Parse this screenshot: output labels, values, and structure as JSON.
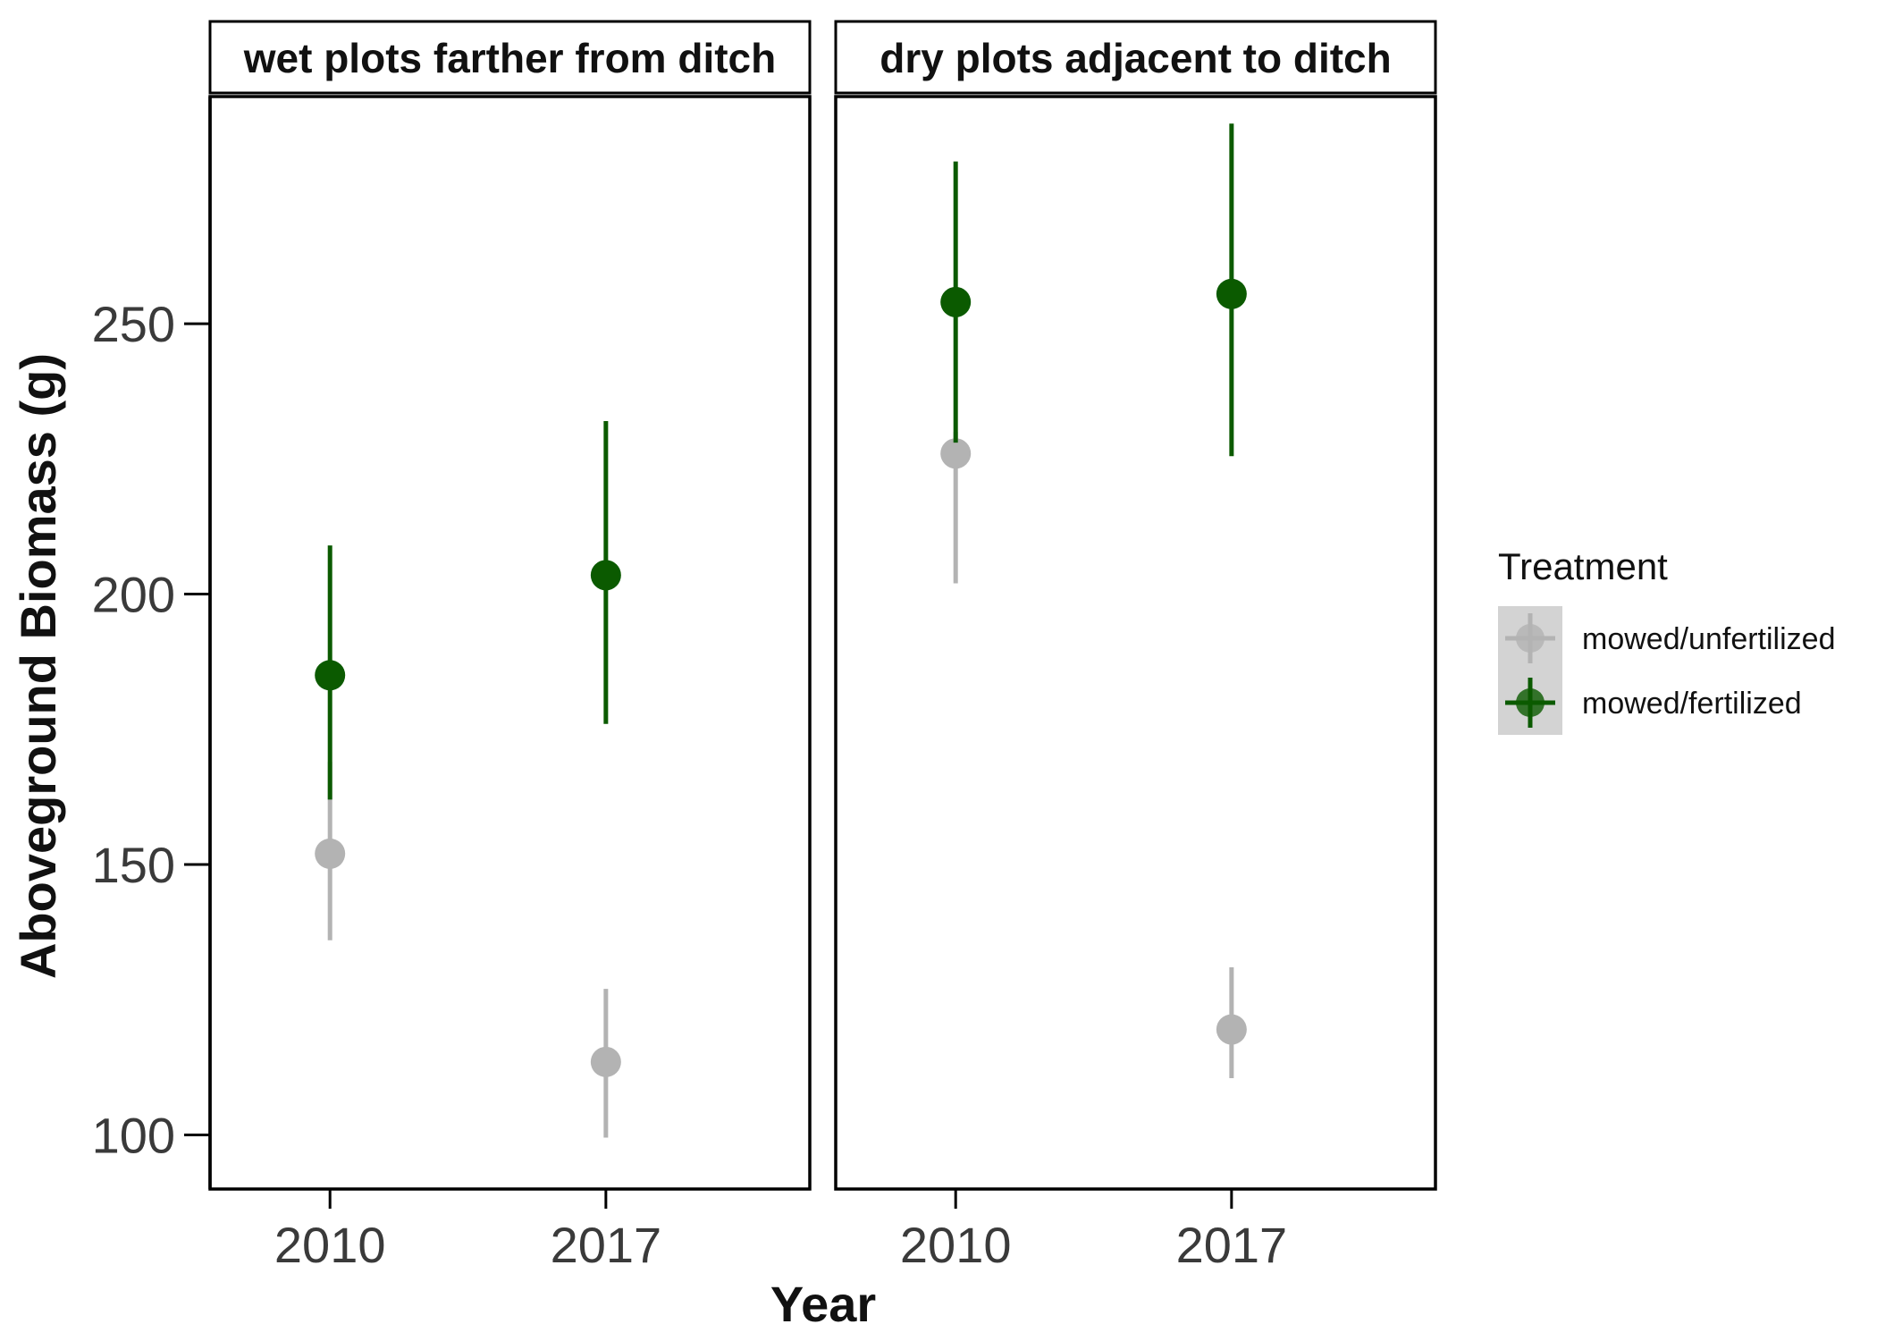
{
  "chart_data": {
    "type": "scatter",
    "subtype": "point-with-errorbars",
    "xlabel": "Year",
    "ylabel": "Aboveground Biomass (g)",
    "categories": [
      "2010",
      "2017"
    ],
    "ylim": [
      90,
      292
    ],
    "yticks": [
      100,
      150,
      200,
      250
    ],
    "grid": false,
    "legend": {
      "title": "Treatment",
      "position": "right"
    },
    "series": [
      {
        "name": "mowed/unfertilized",
        "color": "#b3b3b3"
      },
      {
        "name": "mowed/fertilized",
        "color": "#0b5a00"
      }
    ],
    "facets": [
      {
        "title": "wet plots farther from ditch",
        "points": [
          {
            "series": 0,
            "x": "2010",
            "y": 152,
            "ymin": 136,
            "ymax": 169
          },
          {
            "series": 0,
            "x": "2017",
            "y": 113.5,
            "ymin": 99.5,
            "ymax": 127
          },
          {
            "series": 1,
            "x": "2010",
            "y": 185,
            "ymin": 162,
            "ymax": 209
          },
          {
            "series": 1,
            "x": "2017",
            "y": 203.5,
            "ymin": 176,
            "ymax": 232
          }
        ]
      },
      {
        "title": "dry plots adjacent to ditch",
        "points": [
          {
            "series": 0,
            "x": "2010",
            "y": 226,
            "ymin": 202,
            "ymax": 230
          },
          {
            "series": 0,
            "x": "2017",
            "y": 119.5,
            "ymin": 110.5,
            "ymax": 131
          },
          {
            "series": 1,
            "x": "2010",
            "y": 254,
            "ymin": 228,
            "ymax": 280
          },
          {
            "series": 1,
            "x": "2017",
            "y": 255.5,
            "ymin": 225.5,
            "ymax": 287
          }
        ]
      }
    ]
  }
}
